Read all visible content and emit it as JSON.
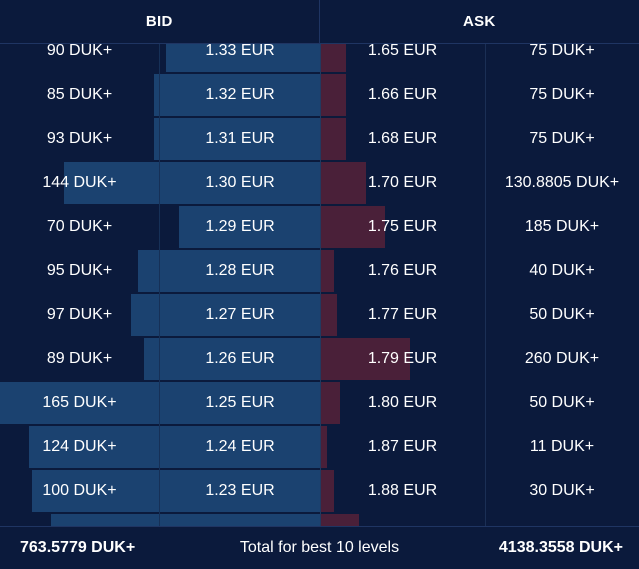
{
  "header": {
    "bid_label": "BID",
    "ask_label": "ASK"
  },
  "rows": [
    {
      "bid_amount": "90 DUK+",
      "bid_price": "1.33 EUR",
      "ask_price": "1.65 EUR",
      "ask_amount": "75 DUK+",
      "bid_depth": 0.48,
      "ask_depth": 0.08
    },
    {
      "bid_amount": "85 DUK+",
      "bid_price": "1.32 EUR",
      "ask_price": "1.66 EUR",
      "ask_amount": "75 DUK+",
      "bid_depth": 0.52,
      "ask_depth": 0.08
    },
    {
      "bid_amount": "93 DUK+",
      "bid_price": "1.31 EUR",
      "ask_price": "1.68 EUR",
      "ask_amount": "75 DUK+",
      "bid_depth": 0.52,
      "ask_depth": 0.08
    },
    {
      "bid_amount": "144 DUK+",
      "bid_price": "1.30 EUR",
      "ask_price": "1.70 EUR",
      "ask_amount": "130.8805 DUK+",
      "bid_depth": 0.8,
      "ask_depth": 0.14
    },
    {
      "bid_amount": "70 DUK+",
      "bid_price": "1.29 EUR",
      "ask_price": "1.75 EUR",
      "ask_amount": "185 DUK+",
      "bid_depth": 0.44,
      "ask_depth": 0.2
    },
    {
      "bid_amount": "95 DUK+",
      "bid_price": "1.28 EUR",
      "ask_price": "1.76 EUR",
      "ask_amount": "40 DUK+",
      "bid_depth": 0.57,
      "ask_depth": 0.04
    },
    {
      "bid_amount": "97 DUK+",
      "bid_price": "1.27 EUR",
      "ask_price": "1.77 EUR",
      "ask_amount": "50 DUK+",
      "bid_depth": 0.59,
      "ask_depth": 0.05
    },
    {
      "bid_amount": "89 DUK+",
      "bid_price": "1.26 EUR",
      "ask_price": "1.79 EUR",
      "ask_amount": "260 DUK+",
      "bid_depth": 0.55,
      "ask_depth": 0.28
    },
    {
      "bid_amount": "165 DUK+",
      "bid_price": "1.25 EUR",
      "ask_price": "1.80 EUR",
      "ask_amount": "50 DUK+",
      "bid_depth": 1.0,
      "ask_depth": 0.06
    },
    {
      "bid_amount": "124 DUK+",
      "bid_price": "1.24 EUR",
      "ask_price": "1.87 EUR",
      "ask_amount": "11 DUK+",
      "bid_depth": 0.91,
      "ask_depth": 0.02
    },
    {
      "bid_amount": "100 DUK+",
      "bid_price": "1.23 EUR",
      "ask_price": "1.88 EUR",
      "ask_amount": "30 DUK+",
      "bid_depth": 0.9,
      "ask_depth": 0.04
    },
    {
      "bid_amount": "",
      "bid_price": "",
      "ask_price": "",
      "ask_amount": "",
      "bid_depth": 0.84,
      "ask_depth": 0.12
    }
  ],
  "footer": {
    "bid_total": "763.5779 DUK+",
    "label": "Total for best 10 levels",
    "ask_total": "4138.3558 DUK+"
  },
  "colors": {
    "background": "#0b1a3c",
    "bid_bar": "#1b4270",
    "ask_bar": "#4a2039",
    "divider": "#1f3563"
  }
}
